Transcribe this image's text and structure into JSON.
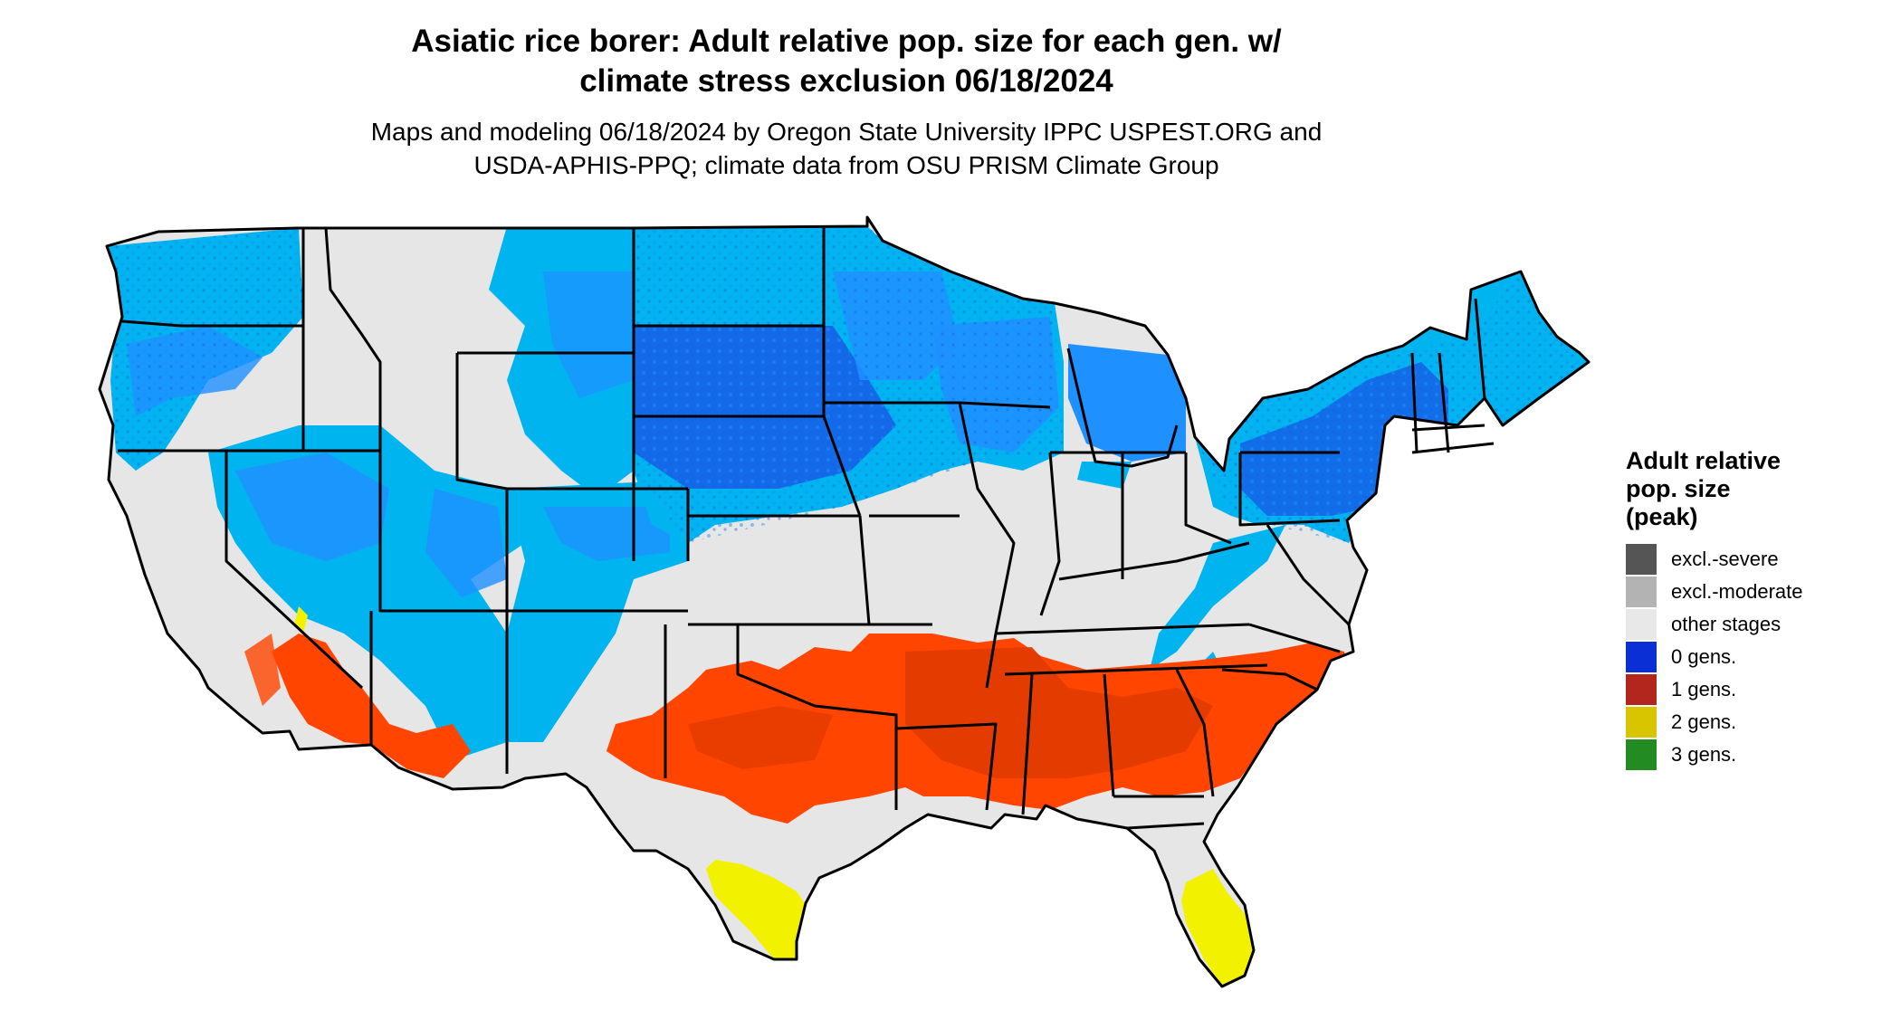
{
  "title": {
    "line1": "Asiatic rice borer: Adult relative pop. size for each gen. w/",
    "line2": "climate stress exclusion 06/18/2024"
  },
  "subtitle": {
    "line1": "Maps and modeling 06/18/2024 by Oregon State University IPPC USPEST.ORG and",
    "line2": "USDA-APHIS-PPQ; climate data from OSU PRISM Climate Group"
  },
  "legend": {
    "title_line1": "Adult relative",
    "title_line2": "pop. size",
    "title_line3": "(peak)",
    "items": [
      {
        "label": "excl.-severe",
        "color": "#555555"
      },
      {
        "label": "excl.-moderate",
        "color": "#b3b3b3"
      },
      {
        "label": "other stages",
        "color": "#e8e8e8"
      },
      {
        "label": "0 gens.",
        "color": "#0a2fd4"
      },
      {
        "label": "1 gens.",
        "color": "#b3261e"
      },
      {
        "label": "2 gens.",
        "color": "#d9c400"
      },
      {
        "label": "3 gens.",
        "color": "#228b22"
      }
    ]
  },
  "map": {
    "colors": {
      "land": "#e6e6e6",
      "light_blue": "#00b4f0",
      "mid_blue": "#1e90ff",
      "dark_blue": "#1560e6",
      "orange": "#ff4500",
      "dark_orange": "#e03a00",
      "yellow": "#f2f200",
      "border": "#000000"
    }
  }
}
